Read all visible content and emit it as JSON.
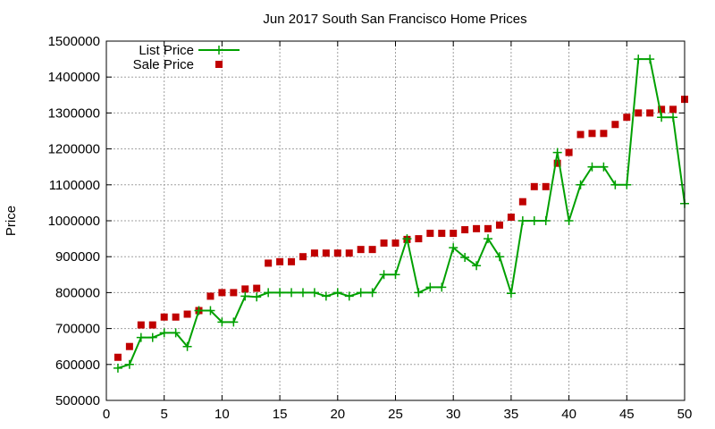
{
  "colors": {
    "list": "#00a000",
    "sale": "#c00000",
    "grid": "#a0a0a0",
    "axis": "#000000"
  },
  "chart_data": {
    "type": "scatter",
    "title": "Jun 2017 South San Francisco Home Prices",
    "xlabel": "",
    "ylabel": "Price",
    "xlim": [
      0,
      50
    ],
    "ylim": [
      500000,
      1500000
    ],
    "xticks": [
      0,
      5,
      10,
      15,
      20,
      25,
      30,
      35,
      40,
      45,
      50
    ],
    "yticks": [
      500000,
      600000,
      700000,
      800000,
      900000,
      1000000,
      1100000,
      1200000,
      1300000,
      1400000,
      1500000
    ],
    "grid": true,
    "legend_position": "top-left",
    "series": [
      {
        "name": "List Price",
        "style": "line-with-plus-markers",
        "color": "#00a000",
        "x": [
          1,
          2,
          3,
          4,
          5,
          6,
          7,
          8,
          9,
          10,
          11,
          12,
          13,
          14,
          15,
          16,
          17,
          18,
          19,
          20,
          21,
          22,
          23,
          24,
          25,
          26,
          27,
          28,
          29,
          30,
          31,
          32,
          33,
          34,
          35,
          36,
          37,
          38,
          39,
          40,
          41,
          42,
          43,
          44,
          45,
          46,
          47,
          48,
          49,
          50
        ],
        "y": [
          590000,
          600000,
          675000,
          675000,
          688000,
          688000,
          650000,
          750000,
          750000,
          718000,
          718000,
          790000,
          788000,
          800000,
          800000,
          800000,
          800000,
          800000,
          790000,
          800000,
          790000,
          800000,
          800000,
          850000,
          850000,
          950000,
          800000,
          815000,
          815000,
          925000,
          898000,
          875000,
          950000,
          900000,
          798000,
          1000000,
          1000000,
          1000000,
          1190000,
          1000000,
          1100000,
          1150000,
          1150000,
          1100000,
          1100000,
          1450000,
          1450000,
          1288000,
          1288000,
          1048000
        ]
      },
      {
        "name": "Sale Price",
        "style": "square-markers",
        "color": "#c00000",
        "x": [
          1,
          2,
          3,
          4,
          5,
          6,
          7,
          8,
          9,
          10,
          11,
          12,
          13,
          14,
          15,
          16,
          17,
          18,
          19,
          20,
          21,
          22,
          23,
          24,
          25,
          26,
          27,
          28,
          29,
          30,
          31,
          32,
          33,
          34,
          35,
          36,
          37,
          38,
          39,
          40,
          41,
          42,
          43,
          44,
          45,
          46,
          47,
          48,
          49,
          50
        ],
        "y": [
          620000,
          650000,
          710000,
          710000,
          732000,
          732000,
          740000,
          750000,
          790000,
          800000,
          800000,
          810000,
          812000,
          882000,
          886000,
          886000,
          900000,
          910000,
          910000,
          910000,
          910000,
          920000,
          920000,
          938000,
          938000,
          948000,
          950000,
          965000,
          965000,
          965000,
          975000,
          978000,
          978000,
          988000,
          1010000,
          1053000,
          1095000,
          1095000,
          1160000,
          1190000,
          1240000,
          1243000,
          1243000,
          1268000,
          1288000,
          1300000,
          1300000,
          1310000,
          1310000,
          1338000
        ]
      }
    ]
  }
}
